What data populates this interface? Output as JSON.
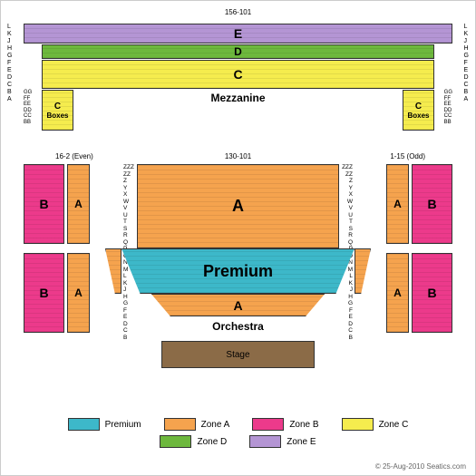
{
  "colors": {
    "premium": "#3db8c9",
    "zone_a": "#f5a34e",
    "zone_b": "#ec3a8b",
    "zone_c": "#f5ec4e",
    "zone_d": "#6db83d",
    "zone_e": "#b495d4",
    "stage": "#8b6b47",
    "border": "#333333",
    "background": "#ffffff"
  },
  "mezzanine": {
    "top_label": "156-101",
    "row_labels_upper": [
      "L",
      "K",
      "J",
      "H",
      "G",
      "F",
      "E",
      "D",
      "C",
      "B",
      "A"
    ],
    "row_labels_lower": [
      "GG",
      "FF",
      "EE",
      "DD",
      "CC",
      "BB"
    ],
    "section_e": "E",
    "section_d": "D",
    "section_c": "C",
    "label": "Mezzanine",
    "box_c": "C",
    "box_label": "Boxes"
  },
  "orchestra": {
    "label_even": "16-2 (Even)",
    "label_center": "130-101",
    "label_odd": "1-15 (Odd)",
    "row_labels": [
      "ZZZ",
      "ZZ",
      "Z",
      "Y",
      "X",
      "W",
      "V",
      "U",
      "T",
      "S",
      "R",
      "Q",
      "P",
      "O",
      "N",
      "M",
      "L",
      "K",
      "J",
      "H",
      "G",
      "F",
      "E",
      "D",
      "C",
      "B"
    ],
    "section_a": "A",
    "section_b": "B",
    "premium_label": "Premium",
    "bottom_a": "A",
    "label": "Orchestra",
    "stage_label": "Stage"
  },
  "legend": {
    "items": [
      {
        "label": "Premium",
        "color_key": "premium"
      },
      {
        "label": "Zone A",
        "color_key": "zone_a"
      },
      {
        "label": "Zone B",
        "color_key": "zone_b"
      },
      {
        "label": "Zone C",
        "color_key": "zone_c"
      },
      {
        "label": "Zone D",
        "color_key": "zone_d"
      },
      {
        "label": "Zone E",
        "color_key": "zone_e"
      }
    ]
  },
  "copyright": "© 25-Aug-2010 Seatics.com"
}
